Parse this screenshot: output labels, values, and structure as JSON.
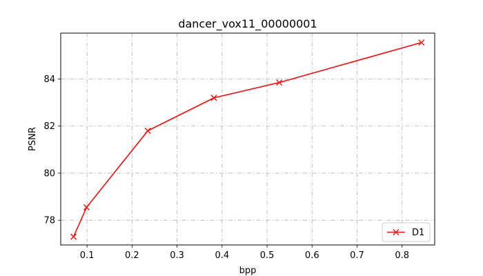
{
  "chart_data": {
    "type": "line",
    "title": "dancer_vox11_00000001",
    "xlabel": "bpp",
    "ylabel": "PSNR",
    "xlim": [
      0.0415,
      0.8725
    ],
    "ylim": [
      76.95,
      85.95
    ],
    "xticks": [
      0.1,
      0.2,
      0.3,
      0.4,
      0.5,
      0.6,
      0.7,
      0.8
    ],
    "xtick_labels": [
      "0.1",
      "0.2",
      "0.3",
      "0.4",
      "0.5",
      "0.6",
      "0.7",
      "0.8"
    ],
    "yticks": [
      78,
      80,
      82,
      84
    ],
    "ytick_labels": [
      "78",
      "80",
      "82",
      "84"
    ],
    "grid": true,
    "legend_position": "lower-right",
    "series": [
      {
        "name": "D1",
        "color": "#e41a1c",
        "marker": "x",
        "x": [
          0.07,
          0.099,
          0.235,
          0.382,
          0.527,
          0.843
        ],
        "y": [
          77.3,
          78.55,
          81.8,
          83.2,
          83.85,
          85.55
        ]
      }
    ]
  }
}
